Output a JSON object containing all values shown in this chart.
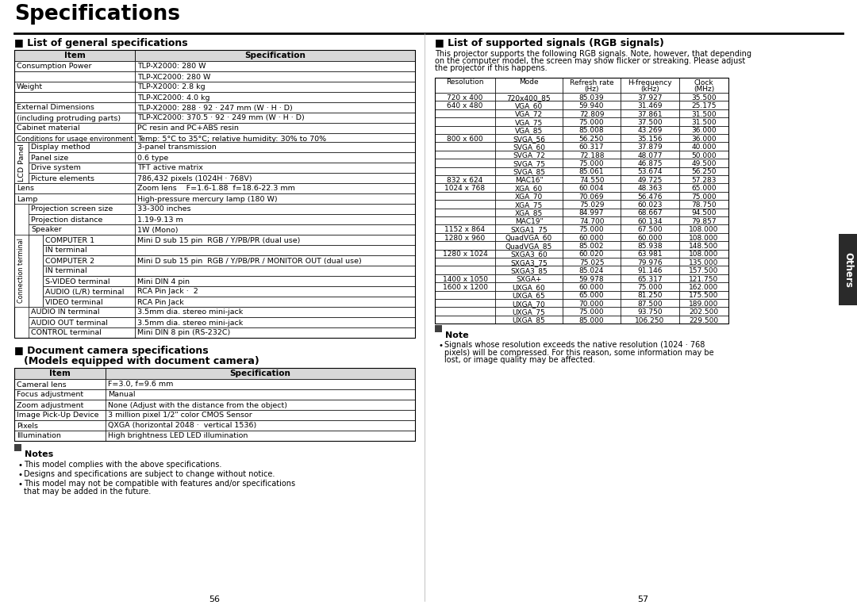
{
  "page_bg": "#ffffff",
  "title": "Specifications",
  "left_section_title": "■ List of general specifications",
  "right_section_title": "■ List of supported signals (RGB signals)",
  "right_intro": "This projector supports the following RGB signals. Note, however, that depending on the computer model, the screen may show flicker or streaking. Please adjust the projector if this happens.",
  "gen_spec_headers": [
    "Item",
    "Specification"
  ],
  "gen_spec_rows": [
    {
      "col1": "Consumption Power",
      "col2": "TLP-X2000: 280 W",
      "indent": 0
    },
    {
      "col1": "",
      "col2": "TLP-XC2000: 280 W",
      "indent": 0
    },
    {
      "col1": "Weight",
      "col2": "TLP-X2000: 2.8 kg",
      "indent": 0
    },
    {
      "col1": "",
      "col2": "TLP-XC2000: 4.0 kg",
      "indent": 0
    },
    {
      "col1": "External Dimensions",
      "col2": "TLP-X2000: 288 · 92 · 247 mm (W · H · D)",
      "indent": 0
    },
    {
      "col1": "(including protruding parts)",
      "col2": "TLP-XC2000: 370.5 · 92 · 249 mm (W · H · D)",
      "indent": 0
    },
    {
      "col1": "Cabinet material",
      "col2": "PC resin and PC+ABS resin",
      "indent": 0
    },
    {
      "col1": "Conditions for usage environment",
      "col2": "Temp: 5°C to 35°C; relative humidity: 30% to 70%",
      "indent": 0,
      "small": true
    },
    {
      "col1": "Display method",
      "col2": "3-panel transmission",
      "indent": 1
    },
    {
      "col1": "Panel size",
      "col2": "0.6 type",
      "indent": 1
    },
    {
      "col1": "Drive system",
      "col2": "TFT active matrix",
      "indent": 1
    },
    {
      "col1": "Picture elements",
      "col2": "786,432 pixels (1024H · 768V)",
      "indent": 1
    },
    {
      "col1": "Lens",
      "col2": "Zoom lens    F=1.6-1.88  f=18.6-22.3 mm",
      "indent": 0
    },
    {
      "col1": "Lamp",
      "col2": "High-pressure mercury lamp (180 W)",
      "indent": 0
    },
    {
      "col1": "Projection screen size",
      "col2": "33-300 inches",
      "indent": 2
    },
    {
      "col1": "Projection distance",
      "col2": "1.19-9.13 m",
      "indent": 2
    },
    {
      "col1": "Speaker",
      "col2": "1W (Mono)",
      "indent": 2
    },
    {
      "col1": "COMPUTER 1",
      "col2": "Mini D sub 15 pin  RGB / Y/PB/PR (dual use)",
      "indent": 3
    },
    {
      "col1": "IN terminal",
      "col2": "",
      "indent": 3,
      "continuation": true
    },
    {
      "col1": "COMPUTER 2",
      "col2": "Mini D sub 15 pin  RGB / Y/PB/PR / MONITOR OUT (dual use)",
      "indent": 3
    },
    {
      "col1": "IN terminal",
      "col2": "",
      "indent": 3,
      "continuation": true
    },
    {
      "col1": "S-VIDEO terminal",
      "col2": "Mini DIN 4 pin",
      "indent": 3
    },
    {
      "col1": "AUDIO (L/R) terminal",
      "col2": "RCA Pin Jack ·  2",
      "indent": 3
    },
    {
      "col1": "VIDEO terminal",
      "col2": "RCA Pin Jack",
      "indent": 3
    },
    {
      "col1": "AUDIO IN terminal",
      "col2": "3.5mm dia. stereo mini-jack",
      "indent": 2
    },
    {
      "col1": "AUDIO OUT terminal",
      "col2": "3.5mm dia. stereo mini-jack",
      "indent": 2
    },
    {
      "col1": "CONTROL terminal",
      "col2": "Mini DIN 8 pin (RS-232C)",
      "indent": 2
    }
  ],
  "doc_cam_headers": [
    "Item",
    "Specification"
  ],
  "doc_cam_rows": [
    [
      "Cameral lens",
      "F=3.0, f=9.6 mm"
    ],
    [
      "Focus adjustment",
      "Manual"
    ],
    [
      "Zoom adjustment",
      "None (Adjust with the distance from the object)"
    ],
    [
      "Image Pick-Up Device",
      "3 million pixel 1/2\" color CMOS Sensor"
    ],
    [
      "Pixels",
      "QXGA (horizontal 2048 ·  vertical 1536)"
    ],
    [
      "Illumination",
      "High brightness LED LED illumination"
    ]
  ],
  "notes": [
    "This model complies with the above specifications.",
    "Designs and specifications are subject to change without notice.",
    "This model may not be compatible with features and/or specifications that may be added in the future."
  ],
  "rgb_table_headers": [
    "Resolution",
    "Mode",
    "Refresh rate\n(Hz)",
    "H-frequency\n(kHz)",
    "Clock\n(MHz)"
  ],
  "rgb_rows": [
    [
      "720 x 400",
      "720x400_85",
      "85.039",
      "37.927",
      "35.500"
    ],
    [
      "640 x 480",
      "VGA_60",
      "59.940",
      "31.469",
      "25.175"
    ],
    [
      "",
      "VGA_72",
      "72.809",
      "37.861",
      "31.500"
    ],
    [
      "",
      "VGA_75",
      "75.000",
      "37.500",
      "31.500"
    ],
    [
      "",
      "VGA_85",
      "85.008",
      "43.269",
      "36.000"
    ],
    [
      "800 x 600",
      "SVGA_56",
      "56.250",
      "35.156",
      "36.000"
    ],
    [
      "",
      "SVGA_60",
      "60.317",
      "37.879",
      "40.000"
    ],
    [
      "",
      "SVGA_72",
      "72.188",
      "48.077",
      "50.000"
    ],
    [
      "",
      "SVGA_75",
      "75.000",
      "46.875",
      "49.500"
    ],
    [
      "",
      "SVGA_85",
      "85.061",
      "53.674",
      "56.250"
    ],
    [
      "832 x 624",
      "MAC16\"",
      "74.550",
      "49.725",
      "57.283"
    ],
    [
      "1024 x 768",
      "XGA_60",
      "60.004",
      "48.363",
      "65.000"
    ],
    [
      "",
      "XGA_70",
      "70.069",
      "56.476",
      "75.000"
    ],
    [
      "",
      "XGA_75",
      "75.029",
      "60.023",
      "78.750"
    ],
    [
      "",
      "XGA_85",
      "84.997",
      "68.667",
      "94.500"
    ],
    [
      "",
      "MAC19\"",
      "74.700",
      "60.134",
      "79.857"
    ],
    [
      "1152 x 864",
      "SXGA1_75",
      "75.000",
      "67.500",
      "108.000"
    ],
    [
      "1280 x 960",
      "QuadVGA_60",
      "60.000",
      "60.000",
      "108.000"
    ],
    [
      "",
      "QuadVGA_85",
      "85.002",
      "85.938",
      "148.500"
    ],
    [
      "1280 x 1024",
      "SXGA3_60",
      "60.020",
      "63.981",
      "108.000"
    ],
    [
      "",
      "SXGA3_75",
      "75.025",
      "79.976",
      "135.000"
    ],
    [
      "",
      "SXGA3_85",
      "85.024",
      "91.146",
      "157.500"
    ],
    [
      "1400 x 1050",
      "SXGA+",
      "59.978",
      "65.317",
      "121.750"
    ],
    [
      "1600 x 1200",
      "UXGA_60",
      "60.000",
      "75.000",
      "162.000"
    ],
    [
      "",
      "UXGA_65",
      "65.000",
      "81.250",
      "175.500"
    ],
    [
      "",
      "UXGA_70",
      "70.000",
      "87.500",
      "189.000"
    ],
    [
      "",
      "UXGA_75",
      "75.000",
      "93.750",
      "202.500"
    ],
    [
      "",
      "UXGA_85",
      "85.000",
      "106.250",
      "229.500"
    ]
  ],
  "note_right_text": "Signals whose resolution exceeds the native resolution (1024 · 768 pixels) will be compressed. For this reason, some information may be lost, or image quality may be affected.",
  "others_tab": "Others"
}
